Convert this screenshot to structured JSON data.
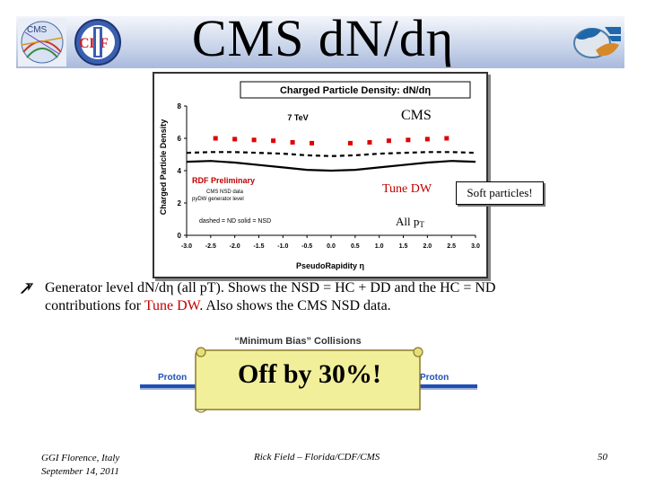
{
  "slide": {
    "title": "CMS d",
    "title_n": "N",
    "title_end": "/d",
    "title_eta": "η"
  },
  "plot": {
    "chart_title": "Charged Particle Density: dN/dη",
    "energy_label": "7 TeV",
    "y_axis_label": "Charged Particle Density",
    "x_axis_label": "PseudoRapidity η",
    "y_ticks": [
      "0",
      "2",
      "4",
      "6",
      "8"
    ],
    "x_ticks": [
      "-3.0",
      "-2.5",
      "-2.0",
      "-1.5",
      "-1.0",
      "-0.5",
      "0.0",
      "0.5",
      "1.0",
      "1.5",
      "2.0",
      "2.5",
      "3.0"
    ],
    "legend_title": "RDF Preliminary",
    "legend_line1": "CMS NSD data",
    "legend_line2": "pyDW generator level",
    "legend_line3": "dashed = ND  solid = NSD"
  },
  "chart_data": {
    "type": "line",
    "title": "Charged Particle Density: dN/dη",
    "xlabel": "PseudoRapidity η",
    "ylabel": "Charged Particle Density",
    "xlim": [
      -3.0,
      3.0
    ],
    "ylim": [
      0,
      8
    ],
    "series": [
      {
        "name": "CMS NSD data",
        "style": "markers",
        "color": "#e00000",
        "x": [
          -2.4,
          -2.0,
          -1.6,
          -1.2,
          -0.8,
          -0.4,
          0.4,
          0.8,
          1.2,
          1.6,
          2.0,
          2.4
        ],
        "y": [
          6.0,
          5.95,
          5.9,
          5.85,
          5.75,
          5.7,
          5.7,
          5.75,
          5.85,
          5.9,
          5.95,
          6.0
        ]
      },
      {
        "name": "dashed = ND",
        "style": "dashed",
        "color": "#000000",
        "x": [
          -3.0,
          -2.5,
          -2.0,
          -1.5,
          -1.0,
          -0.5,
          0.0,
          0.5,
          1.0,
          1.5,
          2.0,
          2.5,
          3.0
        ],
        "y": [
          5.1,
          5.15,
          5.15,
          5.1,
          5.05,
          4.95,
          4.9,
          4.95,
          5.05,
          5.1,
          5.15,
          5.15,
          5.1
        ]
      },
      {
        "name": "solid = NSD",
        "style": "solid",
        "color": "#000000",
        "x": [
          -3.0,
          -2.5,
          -2.0,
          -1.5,
          -1.0,
          -0.5,
          0.0,
          0.5,
          1.0,
          1.5,
          2.0,
          2.5,
          3.0
        ],
        "y": [
          4.55,
          4.6,
          4.5,
          4.35,
          4.2,
          4.05,
          4.0,
          4.05,
          4.2,
          4.35,
          4.5,
          4.6,
          4.55
        ]
      }
    ]
  },
  "annotations": {
    "cms_label": "CMS",
    "tune_label": "Tune DW",
    "soft_particles": "Soft particles!",
    "all_pt_main": "All p",
    "all_pt_sub": "T"
  },
  "bullet": {
    "line1_a": "Generator level dN/d",
    "line1_eta": "η",
    "line1_b": " (all pT).  Shows the NSD = HC + DD and the HC = ND",
    "line2_a": "contributions for ",
    "line2_red": "Tune DW",
    "line2_b": ".  Also shows the CMS NSD data."
  },
  "diagram": {
    "min_bias_title": "“Minimum Bias” Collisions",
    "proton_left": "Proton",
    "proton_right": "Proton",
    "off_by": "Off by 30%!"
  },
  "footer": {
    "left_line1": "GGI Florence, Italy",
    "left_line2": "September 14, 2011",
    "center": "Rick Field – Florida/CDF/CMS",
    "page": "50"
  },
  "colors": {
    "accent_red": "#c00000",
    "data_red": "#e00000",
    "proton_blue": "#1f4fb5",
    "callout_bg": "#f2ef9a",
    "title_band": "#a9b9dc"
  }
}
